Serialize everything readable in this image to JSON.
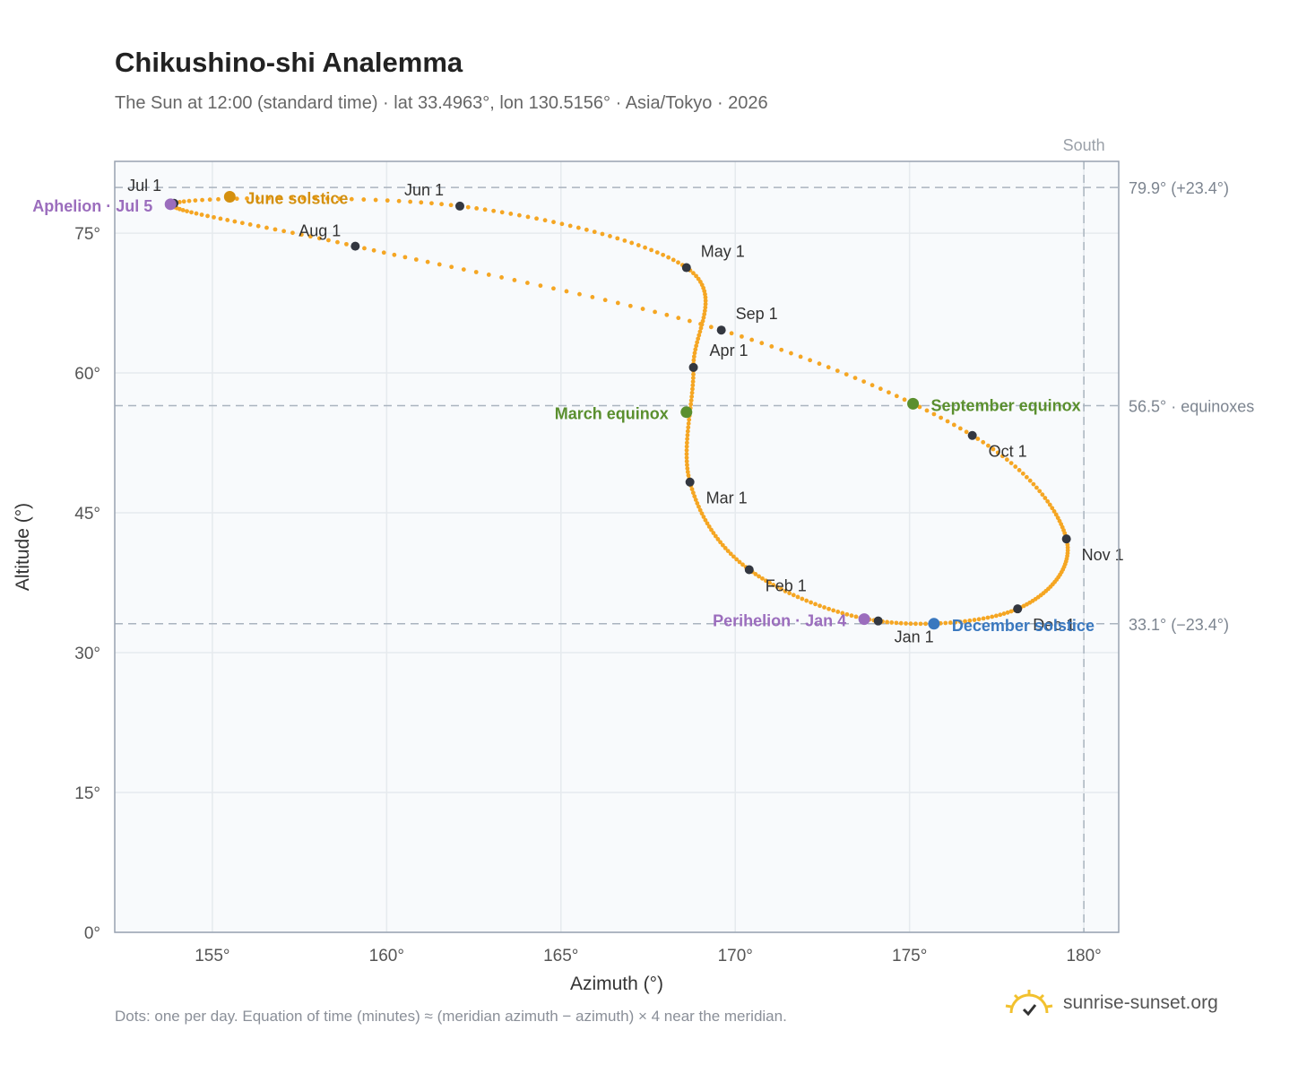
{
  "title": "Chikushino-shi Analemma",
  "subtitle": "The Sun at 12:00 (standard time) · lat 33.4963°, lon 130.5156° · Asia/Tokyo · 2026",
  "footnote": "Dots: one per day. Equation of time (minutes) ≈ (meridian azimuth − azimuth) × 4 near the meridian.",
  "brand": "sunrise-sunset.org",
  "colors": {
    "curve": "#f5a623",
    "month_dot": "#333740",
    "equinox": "#5a8f2e",
    "june_solstice": "#d4900f",
    "december_solstice": "#3a78bf",
    "apsis": "#9b6dbd",
    "ref_line": "#aab4bf",
    "grid": "#e6eaee",
    "plot_bg": "#f8fafc",
    "frame": "#98a2b0"
  },
  "chart_data": {
    "type": "scatter",
    "xlabel": "Azimuth (°)",
    "ylabel": "Altitude (°)",
    "xlim": [
      152.2,
      181.0
    ],
    "ylim": [
      0,
      82.7
    ],
    "x_ticks": [
      {
        "value": 155,
        "label": "155°"
      },
      {
        "value": 160,
        "label": "160°"
      },
      {
        "value": 165,
        "label": "165°"
      },
      {
        "value": 170,
        "label": "170°"
      },
      {
        "value": 175,
        "label": "175°"
      },
      {
        "value": 180,
        "label": "180°"
      }
    ],
    "y_ticks": [
      {
        "value": 0,
        "label": "0°"
      },
      {
        "value": 15,
        "label": "15°"
      },
      {
        "value": 30,
        "label": "30°"
      },
      {
        "value": 45,
        "label": "45°"
      },
      {
        "value": 60,
        "label": "60°"
      },
      {
        "value": 75,
        "label": "75°"
      }
    ],
    "grid": true,
    "reference_lines": [
      {
        "axis": "y",
        "value": 79.9,
        "label": "79.9° (+23.4°)"
      },
      {
        "axis": "y",
        "value": 56.5,
        "label": "56.5° · equinoxes"
      },
      {
        "axis": "y",
        "value": 33.1,
        "label": "33.1° (−23.4°)"
      },
      {
        "axis": "x",
        "value": 180,
        "label": "South"
      }
    ],
    "month_points": [
      {
        "label": "Jan 1",
        "azimuth": 174.1,
        "altitude": 33.4
      },
      {
        "label": "Feb 1",
        "azimuth": 170.4,
        "altitude": 38.9
      },
      {
        "label": "Mar 1",
        "azimuth": 168.7,
        "altitude": 48.3
      },
      {
        "label": "Apr 1",
        "azimuth": 168.8,
        "altitude": 60.6
      },
      {
        "label": "May 1",
        "azimuth": 168.6,
        "altitude": 71.3
      },
      {
        "label": "Jun 1",
        "azimuth": 162.1,
        "altitude": 77.9
      },
      {
        "label": "Jul 1",
        "azimuth": 153.9,
        "altitude": 78.2
      },
      {
        "label": "Aug 1",
        "azimuth": 159.1,
        "altitude": 73.6
      },
      {
        "label": "Sep 1",
        "azimuth": 169.6,
        "altitude": 64.6
      },
      {
        "label": "Oct 1",
        "azimuth": 176.8,
        "altitude": 53.3
      },
      {
        "label": "Nov 1",
        "azimuth": 179.5,
        "altitude": 42.2
      },
      {
        "label": "Dec 1",
        "azimuth": 178.1,
        "altitude": 34.7
      }
    ],
    "events": [
      {
        "label": "June solstice",
        "azimuth": 155.5,
        "altitude": 78.9,
        "kind": "june_solstice"
      },
      {
        "label": "Aphelion · Jul 5",
        "azimuth": 153.8,
        "altitude": 78.1,
        "kind": "apsis"
      },
      {
        "label": "March equinox",
        "azimuth": 168.6,
        "altitude": 55.8,
        "kind": "equinox"
      },
      {
        "label": "September equinox",
        "azimuth": 175.1,
        "altitude": 56.7,
        "kind": "equinox"
      },
      {
        "label": "Perihelion · Jan 4",
        "azimuth": 173.7,
        "altitude": 33.6,
        "kind": "apsis"
      },
      {
        "label": "December solstice",
        "azimuth": 175.7,
        "altitude": 33.1,
        "kind": "december_solstice"
      }
    ]
  }
}
